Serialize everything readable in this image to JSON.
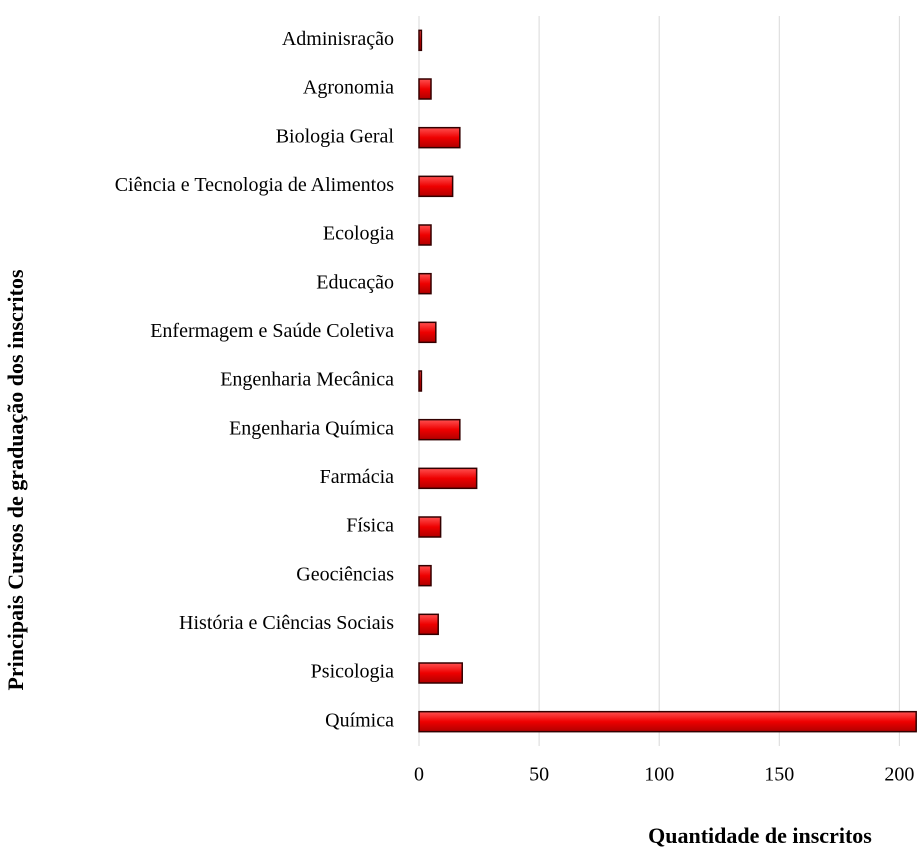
{
  "chart_data": {
    "type": "barh",
    "categories": [
      "Adminisração",
      "Agronomia",
      "Biologia Geral",
      "Ciência e Tecnologia de Alimentos",
      "Ecologia",
      "Educação",
      "Enfermagem e Saúde Coletiva",
      "Engenharia Mecânica",
      "Engenharia Química",
      "Farmácia",
      "Física",
      "Geociências",
      "História e Ciências Sociais",
      "Psicologia",
      "Química"
    ],
    "values": [
      1,
      5,
      17,
      14,
      5,
      5,
      7,
      1,
      17,
      24,
      9,
      5,
      8,
      18,
      207
    ],
    "color": "#e60000",
    "xlim": [
      0,
      209
    ],
    "xticks": [
      0,
      50,
      100,
      150,
      200
    ],
    "grid": true,
    "xlabel": "Quantidade de inscritos",
    "ylabel": "Principais Cursos de graduação dos inscritos"
  }
}
